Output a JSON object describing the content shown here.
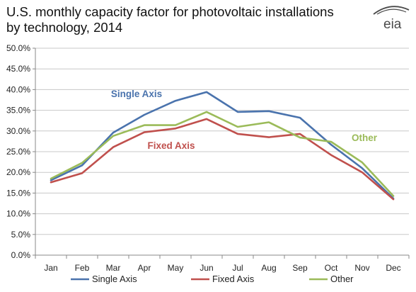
{
  "chart_data": {
    "type": "line",
    "title_lines": [
      "U.S. monthly capacity factor for photovoltaic installations",
      "by technology, 2014"
    ],
    "categories": [
      "Jan",
      "Feb",
      "Mar",
      "Apr",
      "May",
      "Jun",
      "Jul",
      "Aug",
      "Sep",
      "Oct",
      "Nov",
      "Dec"
    ],
    "ylim": [
      0,
      50
    ],
    "yticks": [
      0,
      5,
      10,
      15,
      20,
      25,
      30,
      35,
      40,
      45,
      50
    ],
    "ytick_labels": [
      "0.0%",
      "5.0%",
      "10.0%",
      "15.0%",
      "20.0%",
      "25.0%",
      "30.0%",
      "35.0%",
      "40.0%",
      "45.0%",
      "50.0%"
    ],
    "grid": "horizontal",
    "legend_position": "bottom",
    "series": [
      {
        "name": "Single Axis",
        "color": "#4a73ad",
        "values": [
          18.1,
          21.7,
          29.6,
          33.9,
          37.3,
          39.4,
          34.6,
          34.8,
          33.2,
          26.7,
          21.0,
          13.7
        ]
      },
      {
        "name": "Fixed Axis",
        "color": "#c0504d",
        "values": [
          17.6,
          19.8,
          26.1,
          29.7,
          30.6,
          32.9,
          29.3,
          28.5,
          29.3,
          24.2,
          20.0,
          13.5
        ]
      },
      {
        "name": "Other",
        "color": "#9bbb59",
        "values": [
          18.5,
          22.3,
          28.8,
          31.4,
          31.4,
          34.6,
          31.0,
          32.1,
          28.4,
          27.4,
          22.4,
          14.3
        ]
      }
    ],
    "annotations": [
      {
        "text": "Single Axis",
        "color": "#4a73ad"
      },
      {
        "text": "Fixed Axis",
        "color": "#c0504d"
      },
      {
        "text": "Other",
        "color": "#9bbb59"
      }
    ]
  },
  "logo": {
    "text": "eia",
    "icon": "eia-logo-icon"
  }
}
